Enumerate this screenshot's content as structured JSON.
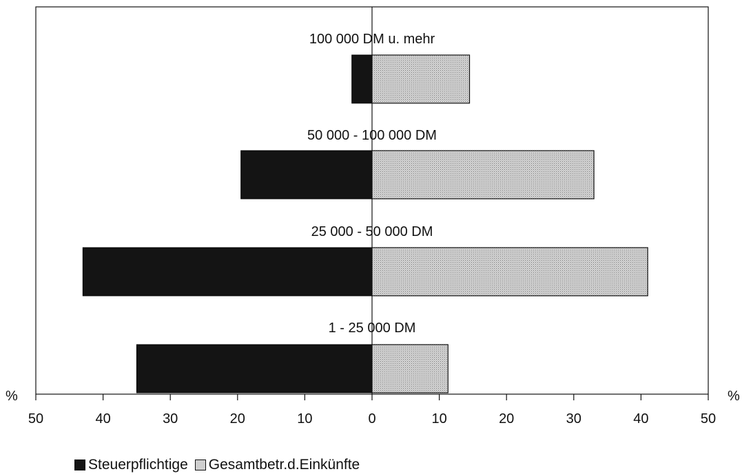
{
  "chart_data": {
    "type": "bar",
    "orientation": "horizontal-diverging",
    "categories": [
      "100 000 DM u. mehr",
      "50 000 - 100 000 DM",
      "25 000 - 50 000 DM",
      "1 - 25 000 DM"
    ],
    "series": [
      {
        "name": "Steuerpflichtige",
        "side": "left",
        "values": [
          3,
          19.5,
          43,
          35
        ],
        "color": "#141414"
      },
      {
        "name": "Gesamtbetr.d.Einkünfte",
        "side": "right",
        "values": [
          14.5,
          33,
          41,
          11.3
        ],
        "color": "#c4c4c4"
      }
    ],
    "xlim": [
      0,
      50
    ],
    "x_ticks": [
      "50",
      "40",
      "30",
      "20",
      "10",
      "0",
      "10",
      "20",
      "30",
      "40",
      "50"
    ],
    "unit_left": "%",
    "unit_right": "%",
    "legend_position": "bottom-left",
    "grid": false
  }
}
